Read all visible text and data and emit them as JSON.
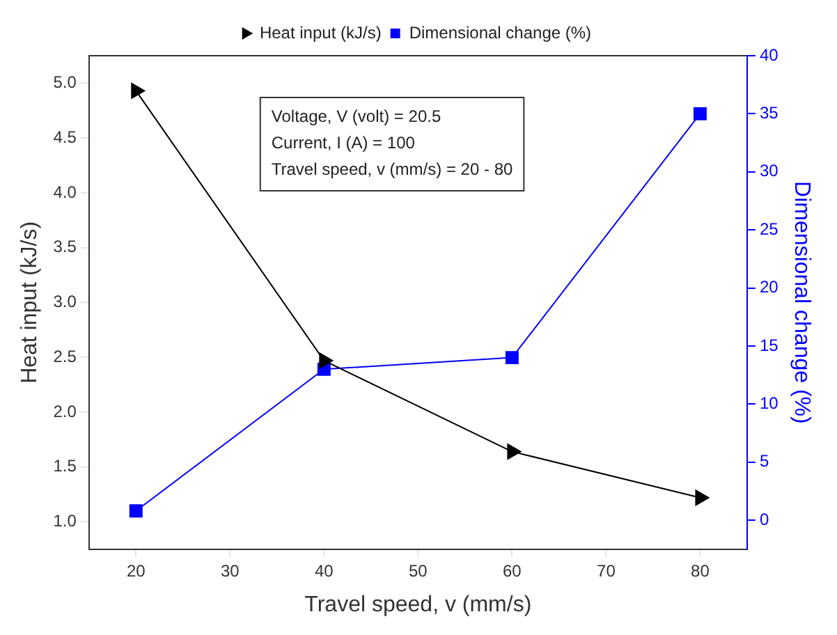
{
  "chart_data": {
    "type": "line",
    "xlabel": "Travel speed, v (mm/s)",
    "ylabel": "Heat input (kJ/s)",
    "y2label": "Dimensional change (%)",
    "x": [
      20,
      40,
      60,
      80
    ],
    "series": [
      {
        "name": "Heat input (kJ/s)",
        "color": "#000000",
        "values": [
          4.93,
          2.47,
          1.64,
          1.22
        ],
        "marker": "triangle"
      },
      {
        "name": "Dimensional change (%)",
        "color": "#0000ff",
        "values": [
          0.8,
          13.0,
          14.0,
          35.0
        ],
        "axis": "y2",
        "marker": "square"
      }
    ],
    "xlim": [
      15,
      85
    ],
    "xticks": [
      20,
      30,
      40,
      50,
      60,
      70,
      80
    ],
    "ylim": [
      0.75,
      5.25
    ],
    "yticks": [
      {
        "value": 1,
        "label": "1.0"
      },
      1.5,
      {
        "value": 2,
        "label": "2.0"
      },
      2.5,
      {
        "value": 3,
        "label": "3.0"
      },
      3.5,
      {
        "value": 4,
        "label": "4.0"
      },
      4.5,
      {
        "value": 5,
        "label": "5.0"
      }
    ],
    "y2lim": [
      -2.5,
      40
    ],
    "y2ticks": [
      0,
      5,
      10,
      15,
      20,
      25,
      30,
      35,
      40
    ],
    "annotations": [
      "Voltage, V (volt) = 20.5",
      "Current, I (A) = 100",
      "Travel speed, v (mm/s) = 20 - 80"
    ],
    "legend": "top",
    "grid": false,
    "line_style": "solid"
  }
}
